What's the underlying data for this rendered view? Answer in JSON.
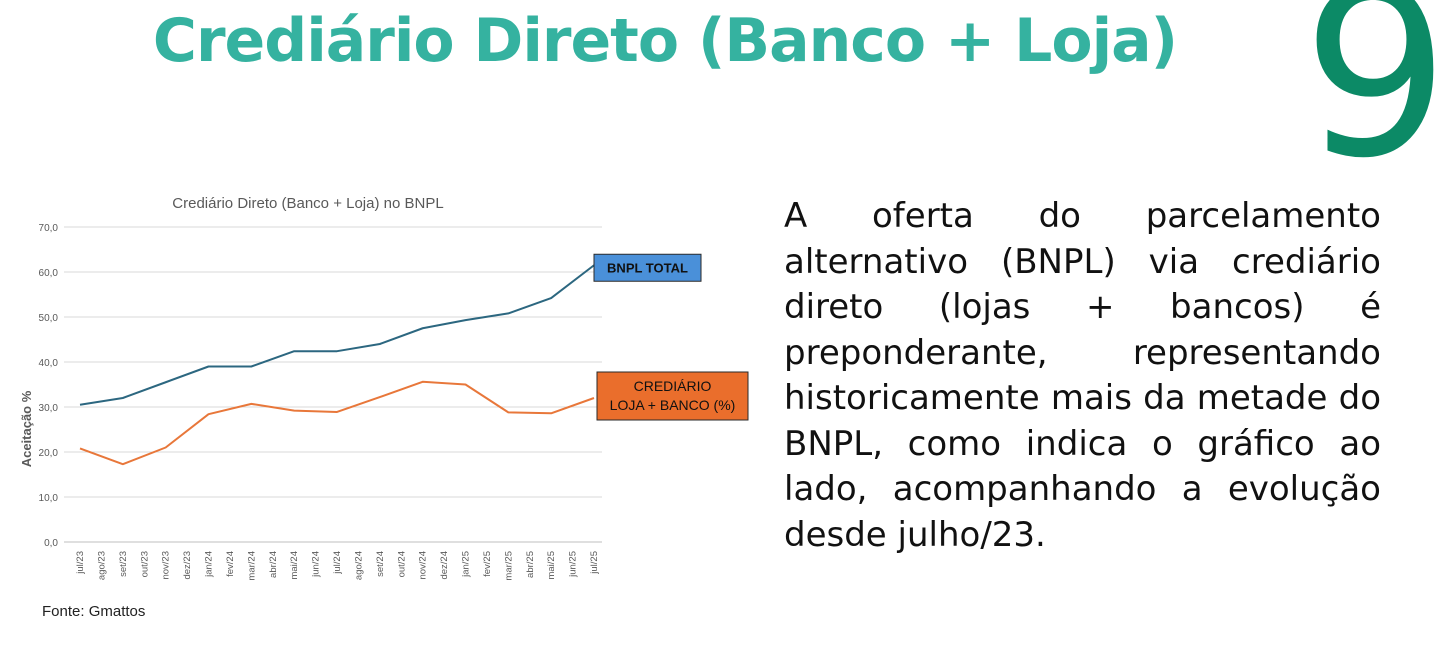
{
  "slide": {
    "title": "Crediário Direto (Banco + Loja)",
    "page_number": "9",
    "source": "Fonte: Gmattos",
    "body_text": "A oferta do parcelamento alternativo (BNPL) via crediário direto (lojas + bancos) é preponderante, representando historicamente mais da metade do BNPL, como indica o gráfico ao lado, acompanhando a evolução desde julho/23.",
    "colors": {
      "title": "#35b2a0",
      "page_number": "#0c8a66"
    }
  },
  "chart_data": {
    "type": "line",
    "title": "Crediário Direto (Banco + Loja) no BNPL",
    "xlabel": "",
    "ylabel": "Aceitação %",
    "ylim": [
      0,
      70
    ],
    "yticks": [
      "0,0",
      "10,0",
      "20,0",
      "30,0",
      "40,0",
      "50,0",
      "60,0",
      "70,0"
    ],
    "grid": true,
    "categories": [
      "jul/23",
      "ago/23",
      "set/23",
      "out/23",
      "nov/23",
      "dez/23",
      "jan/24",
      "fev/24",
      "mar/24",
      "abr/24",
      "mai/24",
      "jun/24",
      "jul/24",
      "ago/24",
      "set/24",
      "out/24",
      "nov/24",
      "dez/24",
      "jan/25",
      "fev/25",
      "mar/25",
      "abr/25",
      "mai/25",
      "jun/25",
      "jul/25"
    ],
    "series": [
      {
        "name": "BNPL TOTAL",
        "color": "#2c6780",
        "label_bg": "#4a90d9",
        "values": [
          30.5,
          null,
          32.0,
          null,
          35.5,
          null,
          39.0,
          null,
          39.0,
          null,
          42.4,
          null,
          42.4,
          null,
          44.0,
          null,
          47.5,
          null,
          49.3,
          null,
          50.8,
          null,
          54.2,
          null,
          61.5
        ]
      },
      {
        "name": "CREDIÁRIO\nLOJA + BANCO (%)",
        "color": "#e8773a",
        "label_bg": "#ea6e2c",
        "values": [
          20.8,
          null,
          17.3,
          null,
          21.0,
          null,
          28.4,
          null,
          30.7,
          null,
          29.2,
          null,
          28.9,
          null,
          32.2,
          null,
          35.6,
          null,
          35.0,
          null,
          28.8,
          null,
          28.6,
          null,
          32.0
        ]
      }
    ]
  }
}
